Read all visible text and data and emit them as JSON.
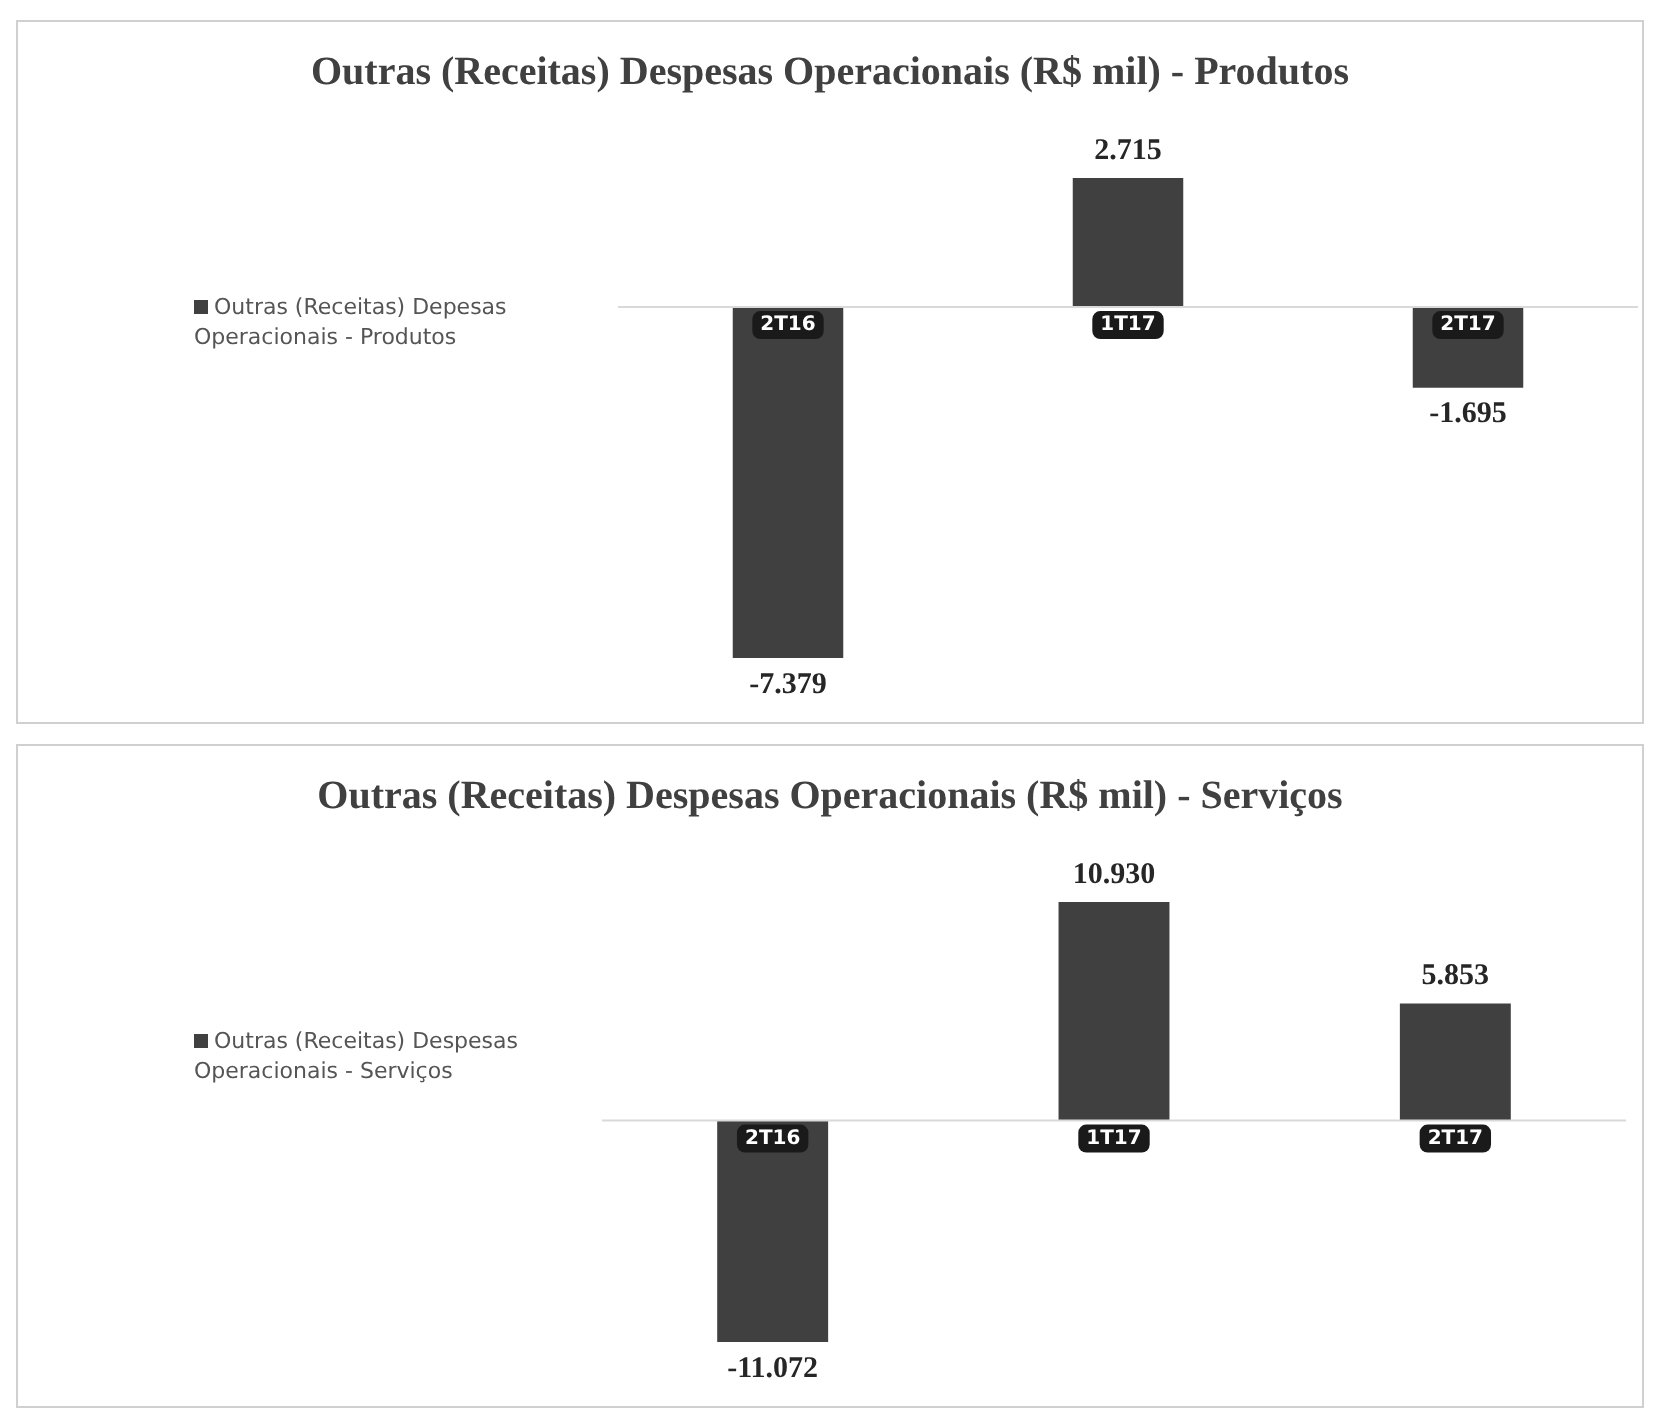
{
  "chart_data": [
    {
      "type": "bar",
      "title": "Outras (Receitas) Despesas Operacionais (R$ mil) - Produtos",
      "categories": [
        "2T16",
        "1T17",
        "2T17"
      ],
      "legend": "left",
      "series": [
        {
          "name": "Outras (Receitas) Depesas Operacionais - Produtos",
          "color": "#404040",
          "values": [
            -7379,
            2715,
            -1695
          ],
          "value_labels": [
            "-7.379",
            "2.715",
            "-1.695"
          ]
        }
      ]
    },
    {
      "type": "bar",
      "title": "Outras (Receitas) Despesas Operacionais (R$ mil) - Serviços",
      "categories": [
        "2T16",
        "1T17",
        "2T17"
      ],
      "legend": "left",
      "series": [
        {
          "name": "Outras (Receitas) Despesas Operacionais - Serviços",
          "color": "#404040",
          "values": [
            -11072,
            10930,
            5853
          ],
          "value_labels": [
            "-11.072",
            "10.930",
            "5.853"
          ]
        }
      ]
    }
  ]
}
